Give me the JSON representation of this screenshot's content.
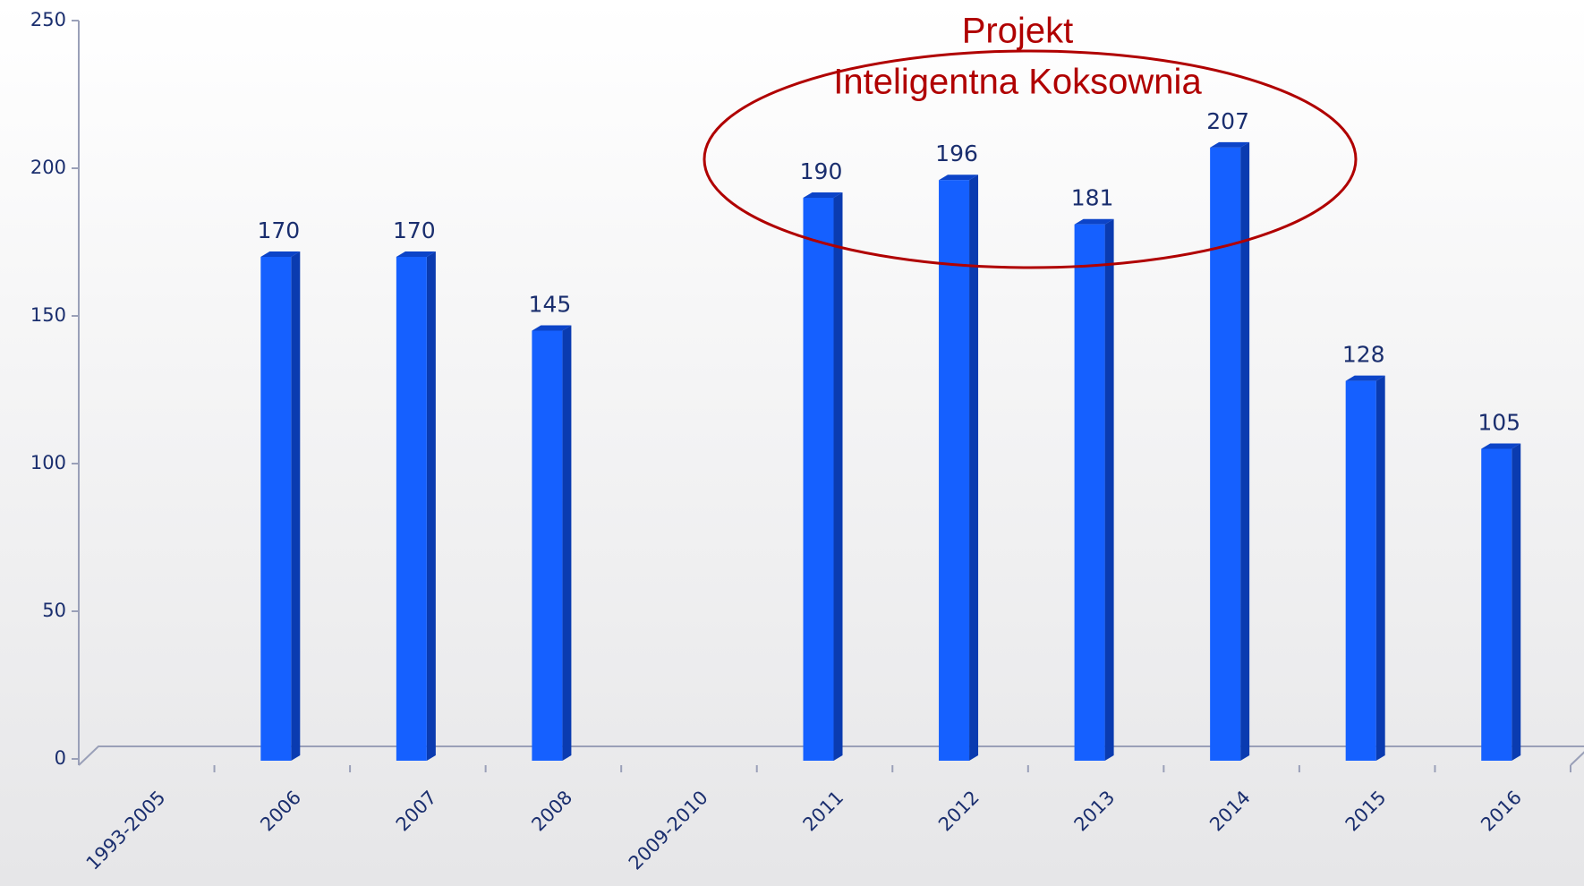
{
  "chart_data": {
    "type": "bar3d",
    "categories": [
      "1993-2005",
      "2006",
      "2007",
      "2008",
      "2009-2010",
      "2011",
      "2012",
      "2013",
      "2014",
      "2015",
      "2016"
    ],
    "values": [
      null,
      170,
      170,
      145,
      null,
      190,
      196,
      181,
      207,
      128,
      105
    ],
    "color": "#1560ff",
    "ylim": [
      0,
      250
    ],
    "yticks": [
      0,
      50,
      100,
      150,
      200,
      250
    ],
    "annotation": [
      "Projekt",
      "Inteligentna Koksownia"
    ]
  }
}
